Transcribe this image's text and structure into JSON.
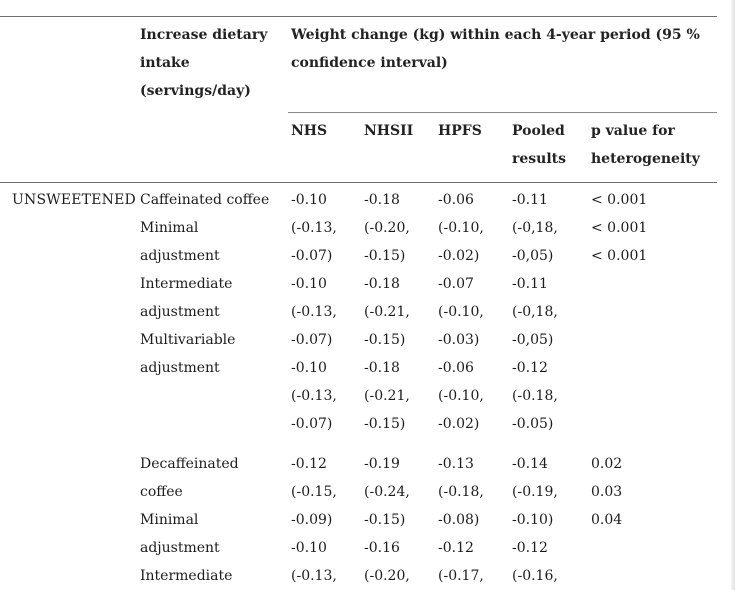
{
  "header": {
    "col1_line1": "Increase dietary",
    "col1_line2": "intake",
    "col1_line3": "(servings/day)",
    "span_line1": "Weight change (kg) within each 4-year period (95 %",
    "span_line2": "confidence interval)",
    "nhs": "NHS",
    "nhsii": "NHSII",
    "hpfs": "HPFS",
    "pooled_line1": "Pooled",
    "pooled_line2": "results",
    "pval_line1": "p value for",
    "pval_line2": "heterogeneity"
  },
  "section": {
    "label": "UNSWEETENED"
  },
  "rows": [
    {
      "intake": "Caffeinated coffee",
      "nhs": "-0.10",
      "nhsii": "-0.18",
      "hpfs": "-0.06",
      "pooled": "-0.11",
      "p": "< 0.001"
    },
    {
      "intake": "Minimal",
      "nhs": "(-0.13,",
      "nhsii": "(-0.20,",
      "hpfs": "(-0.10,",
      "pooled": "(-0,18,",
      "p": "< 0.001"
    },
    {
      "intake": "adjustment",
      "nhs": "-0.07)",
      "nhsii": "-0.15)",
      "hpfs": "-0.02)",
      "pooled": "-0,05)",
      "p": "< 0.001"
    },
    {
      "intake": "Intermediate",
      "nhs": "-0.10",
      "nhsii": "-0.18",
      "hpfs": "-0.07",
      "pooled": "-0.11",
      "p": ""
    },
    {
      "intake": "adjustment",
      "nhs": "(-0.13,",
      "nhsii": "(-0.21,",
      "hpfs": "(-0.10,",
      "pooled": "(-0,18,",
      "p": ""
    },
    {
      "intake": "Multivariable",
      "nhs": "-0.07)",
      "nhsii": "-0.15)",
      "hpfs": "-0.03)",
      "pooled": "-0,05)",
      "p": ""
    },
    {
      "intake": "adjustment",
      "nhs": "-0.10",
      "nhsii": "-0.18",
      "hpfs": "-0.06",
      "pooled": "-0.12",
      "p": ""
    },
    {
      "intake": "",
      "nhs": "(-0.13,",
      "nhsii": "(-0.21,",
      "hpfs": "(-0.10,",
      "pooled": "(-0.18,",
      "p": ""
    },
    {
      "intake": "",
      "nhs": "-0.07)",
      "nhsii": "-0.15)",
      "hpfs": "-0.02)",
      "pooled": "-0.05)",
      "p": ""
    },
    {
      "intake": "Decaffeinated",
      "nhs": "-0.12",
      "nhsii": "-0.19",
      "hpfs": "-0.13",
      "pooled": "-0.14",
      "p": "0.02"
    },
    {
      "intake": "coffee",
      "nhs": "(-0.15,",
      "nhsii": "(-0.24,",
      "hpfs": "(-0.18,",
      "pooled": "(-0.19,",
      "p": "0.03"
    },
    {
      "intake": "Minimal",
      "nhs": "-0.09)",
      "nhsii": "-0.15)",
      "hpfs": "-0.08)",
      "pooled": "-0.10)",
      "p": "0.04"
    },
    {
      "intake": "adjustment",
      "nhs": "-0.10",
      "nhsii": "-0.16",
      "hpfs": "-0.12",
      "pooled": "-0.12",
      "p": ""
    },
    {
      "intake": "Intermediate",
      "nhs": "(-0.13,",
      "nhsii": "(-0.20,",
      "hpfs": "(-0.17,",
      "pooled": "(-0.16,",
      "p": ""
    }
  ]
}
